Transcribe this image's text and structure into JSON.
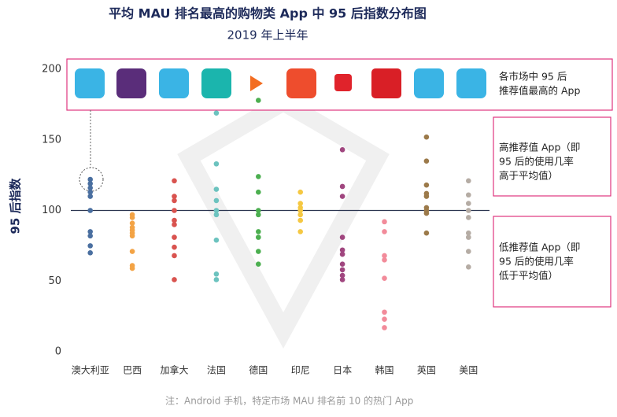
{
  "chart_data": {
    "type": "strip",
    "title": "平均 MAU 排名最高的购物类 App 中 95 后指数分布图",
    "subtitle": "2019 年上半年",
    "y_label": "95 后指数",
    "ylim": [
      0,
      200
    ],
    "yticks": [
      0,
      50,
      100,
      150,
      200
    ],
    "reference_line": 100,
    "groups": [
      {
        "name": "澳大利亚",
        "color": "#4a6fa0",
        "values": [
          122,
          119,
          116,
          113,
          110,
          100,
          85,
          82,
          75,
          70
        ]
      },
      {
        "name": "巴西",
        "color": "#f3a345",
        "values": [
          97,
          95,
          91,
          88,
          86,
          84,
          82,
          71,
          61,
          59
        ]
      },
      {
        "name": "加拿大",
        "color": "#d9534f",
        "values": [
          121,
          110,
          107,
          100,
          93,
          90,
          81,
          74,
          68,
          51
        ]
      },
      {
        "name": "法国",
        "color": "#6cc3bf",
        "values": [
          169,
          133,
          115,
          107,
          100,
          97,
          79,
          55,
          51
        ]
      },
      {
        "name": "德国",
        "color": "#4caf50",
        "values": [
          178,
          124,
          113,
          100,
          97,
          85,
          81,
          71,
          62
        ]
      },
      {
        "name": "印尼",
        "color": "#f5c842",
        "values": [
          113,
          105,
          102,
          100,
          97,
          93,
          85
        ]
      },
      {
        "name": "日本",
        "color": "#a0467f",
        "values": [
          143,
          117,
          110,
          81,
          72,
          69,
          62,
          58,
          54,
          51
        ]
      },
      {
        "name": "韩国",
        "color": "#f28b9a",
        "values": [
          92,
          85,
          68,
          65,
          52,
          28,
          23,
          17
        ]
      },
      {
        "name": "英国",
        "color": "#9c7a4a",
        "values": [
          152,
          135,
          118,
          112,
          110,
          102,
          100,
          98,
          84
        ]
      },
      {
        "name": "美国",
        "color": "#b5aca4",
        "values": [
          121,
          111,
          105,
          100,
          95,
          84,
          81,
          71,
          60
        ]
      }
    ],
    "annotations": [
      {
        "lines": [
          "各市场中 95 后",
          "推荐值最高的 App"
        ]
      },
      {
        "lines": [
          "高推荐值 App（即",
          "95 后的使用几率",
          "高于平均值）"
        ]
      },
      {
        "lines": [
          "低推荐值 App（即",
          "95 后的使用几率",
          "低于平均值）"
        ]
      }
    ],
    "note": "注：Android 手机，特定市场 MAU 排名前 10 的热门 App"
  }
}
